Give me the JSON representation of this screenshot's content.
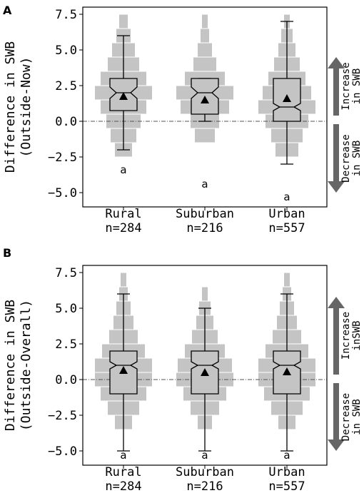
{
  "chart_data": [
    {
      "panel": "A",
      "type": "box",
      "ylabel_lines": [
        "Difference in SWB",
        "(Outside-Now)"
      ],
      "ylim": [
        -6,
        8
      ],
      "yticks": [
        -5.0,
        -2.5,
        0.0,
        2.5,
        5.0,
        7.5
      ],
      "ytick_labels": [
        "−5.0",
        "−2.5",
        "0.0",
        "2.5",
        "5.0",
        "7.5"
      ],
      "categories": [
        "Rural",
        "Suburban",
        "Urban"
      ],
      "counts": [
        "n=284",
        "n=216",
        "n=557"
      ],
      "series": [
        {
          "category": "Rural",
          "whisker_low": -2,
          "q1": 0.75,
          "median": 2,
          "q3": 3,
          "whisker_high": 6,
          "notch_low": 1.6,
          "notch_high": 2.4,
          "mean": 1.75,
          "sig_letter": "a",
          "sig_y": -3.4,
          "hist": [
            [
              -2,
              0.3
            ],
            [
              -1,
              0.45
            ],
            [
              0,
              0.6
            ],
            [
              1,
              0.8
            ],
            [
              2,
              1.0
            ],
            [
              3,
              0.8
            ],
            [
              4,
              0.55
            ],
            [
              5,
              0.4
            ],
            [
              6,
              0.25
            ],
            [
              7,
              0.15
            ]
          ]
        },
        {
          "category": "Suburban",
          "whisker_low": 0,
          "q1": 0.5,
          "median": 2,
          "q3": 3,
          "whisker_high": 3,
          "notch_low": 1.6,
          "notch_high": 2.4,
          "mean": 1.5,
          "sig_letter": "a",
          "sig_y": -4.4,
          "hist": [
            [
              -1,
              0.35
            ],
            [
              0,
              0.5
            ],
            [
              1,
              0.85
            ],
            [
              2,
              1.0
            ],
            [
              3,
              0.7
            ],
            [
              4,
              0.4
            ],
            [
              5,
              0.25
            ],
            [
              6,
              0.15
            ],
            [
              7,
              0.1
            ]
          ]
        },
        {
          "category": "Urban",
          "whisker_low": -3,
          "q1": 0,
          "median": 1,
          "q3": 3,
          "whisker_high": 7,
          "notch_low": 0.75,
          "notch_high": 1.25,
          "mean": 1.6,
          "sig_letter": "a",
          "sig_y": -5.3,
          "hist": [
            [
              -2,
              0.4
            ],
            [
              -1,
              0.55
            ],
            [
              0,
              0.75
            ],
            [
              1,
              1.0
            ],
            [
              2,
              0.85
            ],
            [
              3,
              0.65
            ],
            [
              4,
              0.45
            ],
            [
              5,
              0.3
            ],
            [
              6,
              0.2
            ],
            [
              7,
              0.1
            ]
          ]
        }
      ],
      "reference_line_y": 0,
      "side_arrows": [
        {
          "direction": "up",
          "lines": [
            "Increase",
            "in SWB"
          ]
        },
        {
          "direction": "down",
          "lines": [
            "Decrease",
            "in SWB"
          ]
        }
      ]
    },
    {
      "panel": "B",
      "type": "box",
      "ylabel_lines": [
        "Difference in SWB",
        "(Outside-Overall)"
      ],
      "ylim": [
        -6,
        8
      ],
      "yticks": [
        -5.0,
        -2.5,
        0.0,
        2.5,
        5.0,
        7.5
      ],
      "ytick_labels": [
        "−5.0",
        "−2.5",
        "0.0",
        "2.5",
        "5.0",
        "7.5"
      ],
      "categories": [
        "Rural",
        "Suburban",
        "Urban"
      ],
      "counts": [
        "n=284",
        "n=216",
        "n=557"
      ],
      "series": [
        {
          "category": "Rural",
          "whisker_low": -5,
          "q1": -1,
          "median": 1,
          "q3": 2,
          "whisker_high": 6,
          "notch_low": 0.75,
          "notch_high": 1.25,
          "mean": 0.65,
          "sig_letter": "a",
          "sig_y": -5.3,
          "hist": [
            [
              -3,
              0.3
            ],
            [
              -2,
              0.55
            ],
            [
              -1,
              0.8
            ],
            [
              0,
              1.0
            ],
            [
              1,
              1.0
            ],
            [
              2,
              0.75
            ],
            [
              3,
              0.5
            ],
            [
              4,
              0.35
            ],
            [
              5,
              0.25
            ],
            [
              6,
              0.15
            ],
            [
              7,
              0.1
            ]
          ]
        },
        {
          "category": "Suburban",
          "whisker_low": -5,
          "q1": -1,
          "median": 1,
          "q3": 2,
          "whisker_high": 5,
          "notch_low": 0.75,
          "notch_high": 1.25,
          "mean": 0.5,
          "sig_letter": "a",
          "sig_y": -5.3,
          "hist": [
            [
              -3,
              0.25
            ],
            [
              -2,
              0.5
            ],
            [
              -1,
              0.75
            ],
            [
              0,
              1.0
            ],
            [
              1,
              0.95
            ],
            [
              2,
              0.7
            ],
            [
              3,
              0.45
            ],
            [
              4,
              0.3
            ],
            [
              5,
              0.2
            ],
            [
              6,
              0.1
            ]
          ]
        },
        {
          "category": "Urban",
          "whisker_low": -5,
          "q1": -1,
          "median": 1,
          "q3": 2,
          "whisker_high": 6,
          "notch_low": 0.75,
          "notch_high": 1.25,
          "mean": 0.55,
          "sig_letter": "a",
          "sig_y": -5.3,
          "hist": [
            [
              -3,
              0.3
            ],
            [
              -2,
              0.55
            ],
            [
              -1,
              0.8
            ],
            [
              0,
              1.0
            ],
            [
              1,
              1.0
            ],
            [
              2,
              0.75
            ],
            [
              3,
              0.5
            ],
            [
              4,
              0.35
            ],
            [
              5,
              0.25
            ],
            [
              6,
              0.15
            ],
            [
              7,
              0.1
            ]
          ]
        }
      ],
      "reference_line_y": 0,
      "side_arrows": [
        {
          "direction": "up",
          "lines": [
            "Increase",
            "inSWB"
          ]
        },
        {
          "direction": "down",
          "lines": [
            "Decrease",
            "in SWB"
          ]
        }
      ]
    }
  ],
  "colors": {
    "hist_fill": "#c4c4c4",
    "box_fill": "#c4c4c4",
    "arrow": "#666666",
    "mean_marker": "#000000",
    "reference_line": "#555555"
  }
}
